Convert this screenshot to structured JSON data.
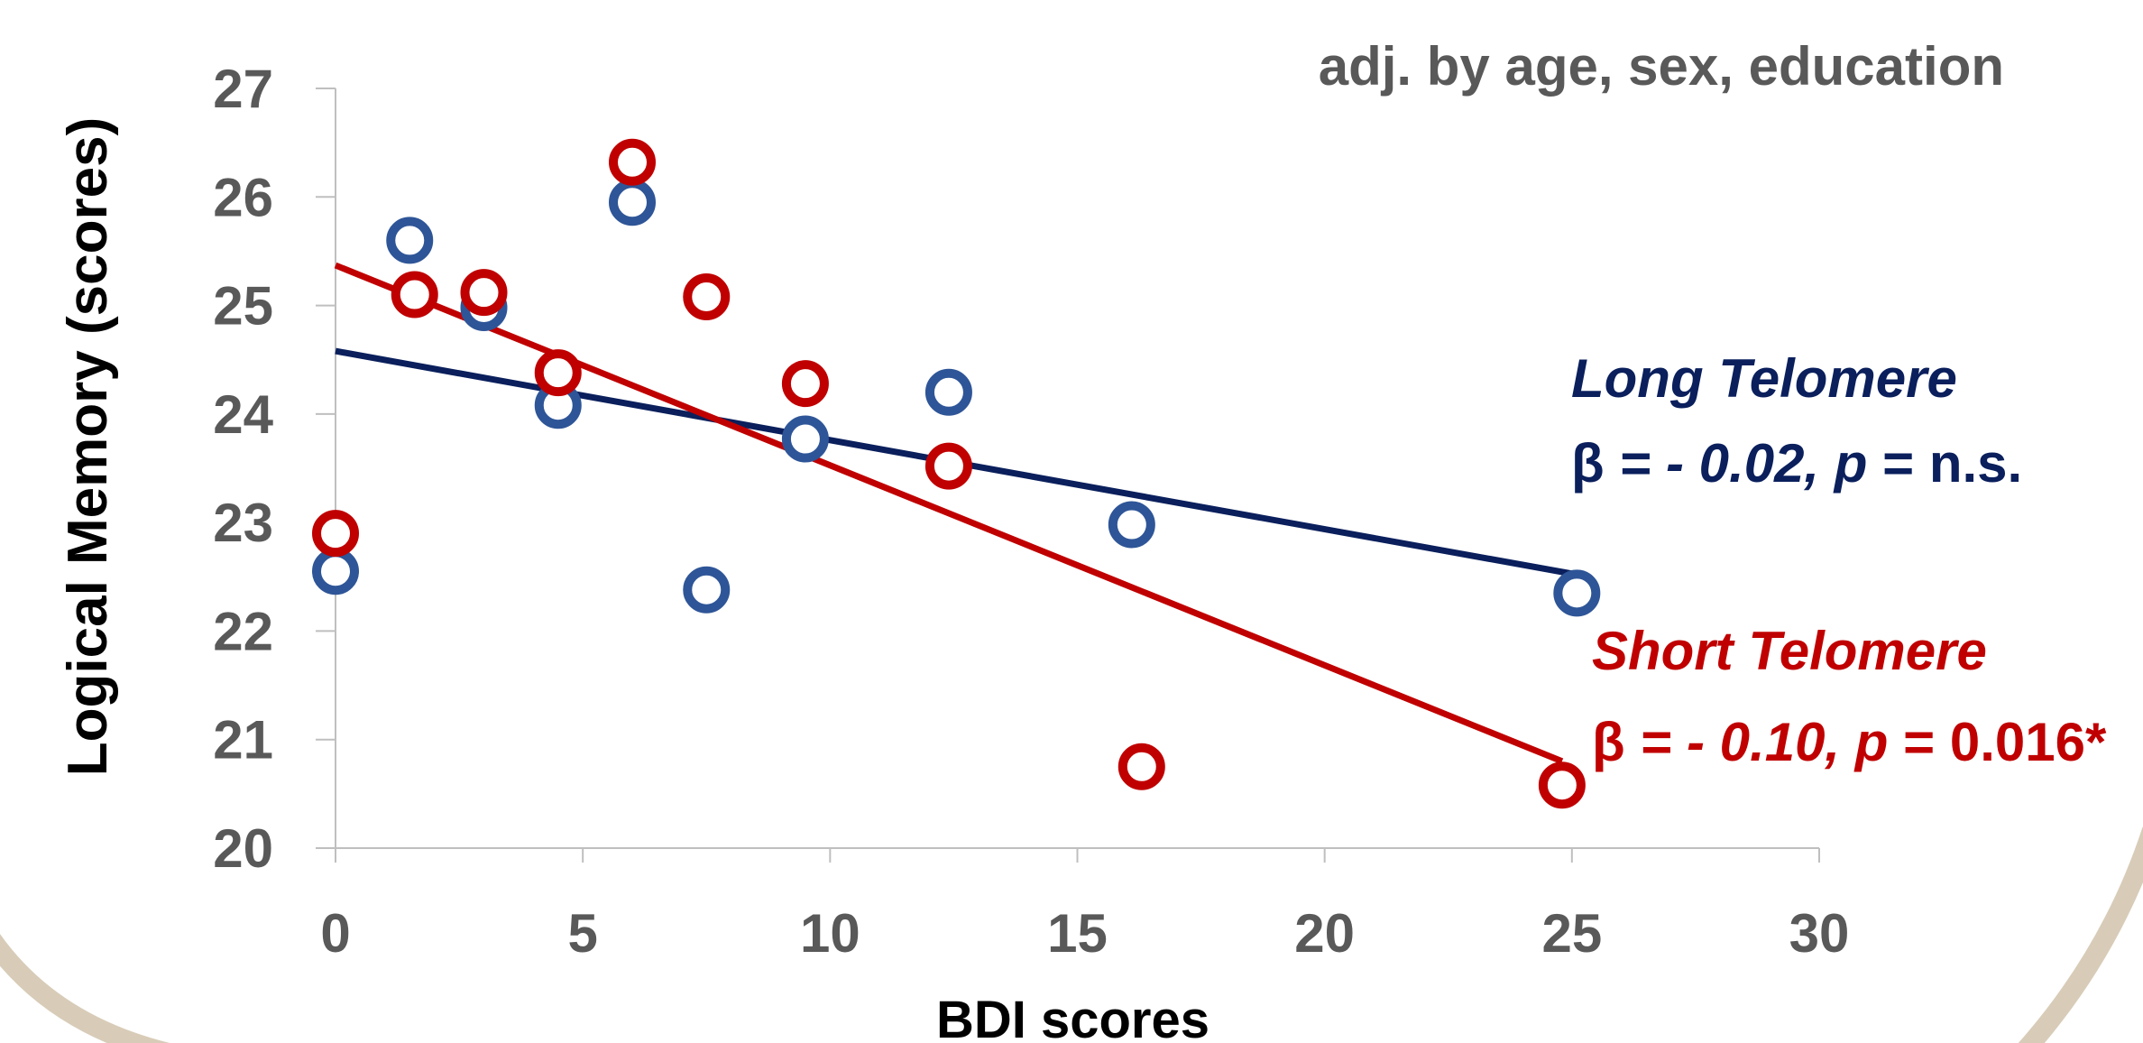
{
  "chart_data": {
    "type": "scatter",
    "xlabel": "BDI scores",
    "ylabel": "Logical Memory (scores)",
    "xlim": [
      0,
      30
    ],
    "ylim": [
      20,
      27
    ],
    "x_ticks": [
      "0",
      "5",
      "10",
      "15",
      "20",
      "25",
      "30"
    ],
    "y_ticks": [
      "20",
      "21",
      "22",
      "23",
      "24",
      "25",
      "26",
      "27"
    ],
    "grid": false,
    "annotation": "adj. by age, sex, education",
    "series": [
      {
        "name": "Long Telomere",
        "color": "#2e5597",
        "trend_color": "#0a1f5c",
        "stat": {
          "beta": "β",
          "mid": " = - 0.02, ",
          "p": "p",
          "eq": " = ",
          "pval": "n.s."
        },
        "points": [
          {
            "x": 0,
            "y": 22.55
          },
          {
            "x": 1.5,
            "y": 25.6
          },
          {
            "x": 3,
            "y": 24.98
          },
          {
            "x": 4.5,
            "y": 24.08
          },
          {
            "x": 6,
            "y": 25.95
          },
          {
            "x": 7.5,
            "y": 22.38
          },
          {
            "x": 9.5,
            "y": 23.77
          },
          {
            "x": 12.4,
            "y": 24.2
          },
          {
            "x": 16.1,
            "y": 22.98
          },
          {
            "x": 25.1,
            "y": 22.35
          }
        ],
        "trend": {
          "x0": 0,
          "y0": 24.58,
          "x1": 25.1,
          "y1": 22.52
        }
      },
      {
        "name": "Short Telomere",
        "color": "#c00000",
        "trend_color": "#c00000",
        "stat": {
          "beta": "β",
          "mid": " = - 0.10, ",
          "p": "p",
          "eq": " = ",
          "pval": "0.016*"
        },
        "points": [
          {
            "x": 0,
            "y": 22.9
          },
          {
            "x": 1.6,
            "y": 25.1
          },
          {
            "x": 3,
            "y": 25.12
          },
          {
            "x": 4.5,
            "y": 24.38
          },
          {
            "x": 6,
            "y": 26.32
          },
          {
            "x": 7.5,
            "y": 25.08
          },
          {
            "x": 9.5,
            "y": 24.28
          },
          {
            "x": 12.4,
            "y": 23.52
          },
          {
            "x": 16.3,
            "y": 20.75
          },
          {
            "x": 24.8,
            "y": 20.58
          }
        ],
        "trend": {
          "x0": 0,
          "y0": 25.37,
          "x1": 24.8,
          "y1": 20.8
        }
      }
    ]
  }
}
